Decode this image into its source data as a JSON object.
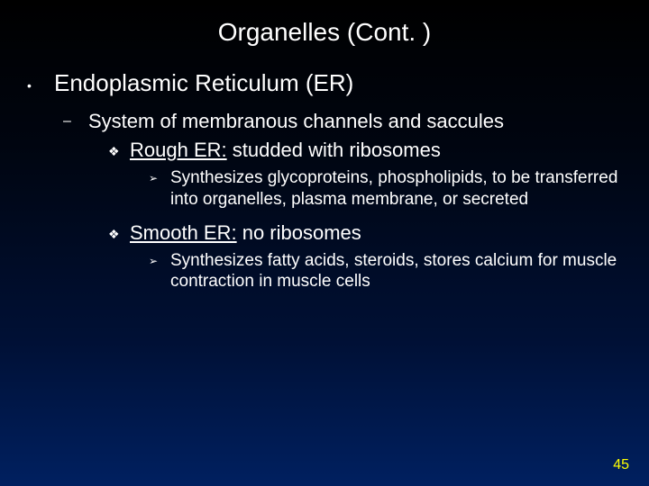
{
  "title": "Organelles (Cont. )",
  "page_number": "45",
  "l1_text": "Endoplasmic Reticulum (ER)",
  "l2_text": "System of membranous channels and saccules",
  "l3a_underline": "Rough ER:",
  "l3a_rest": " studded with ribosomes",
  "l4a_text": "Synthesizes glycoproteins, phospholipids, to be transferred into organelles, plasma membrane, or secreted",
  "l3b_underline": "Smooth ER:",
  "l3b_rest": " no ribosomes",
  "l4b_text": "Synthesizes fatty acids, steroids, stores calcium for muscle contraction in muscle cells",
  "bullets": {
    "l1": "•",
    "l2": "–",
    "l3": "❖",
    "l4": "➢"
  },
  "colors": {
    "text": "#ffffff",
    "page_num": "#ffff00",
    "bg_top": "#000000",
    "bg_bottom": "#002060"
  },
  "fontsizes": {
    "title": 28,
    "l1": 26,
    "l2": 22,
    "l3": 22,
    "l4": 19,
    "page_num": 16
  }
}
